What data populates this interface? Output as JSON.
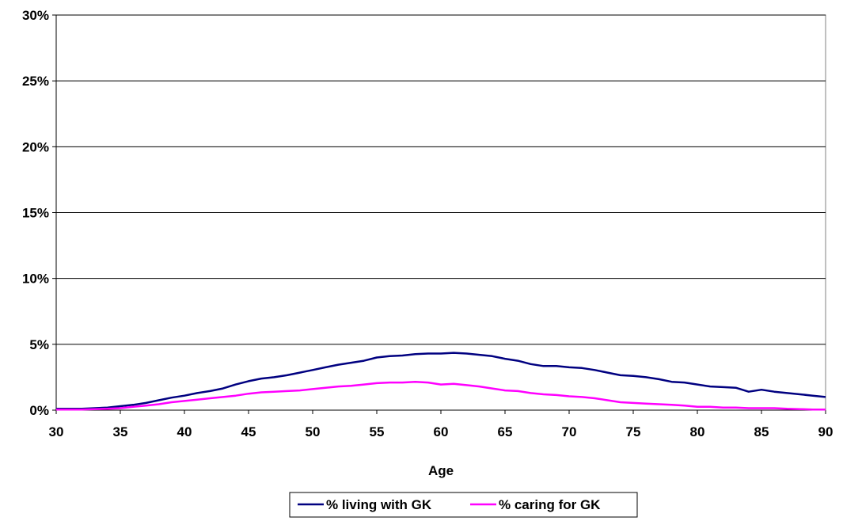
{
  "chart_data": {
    "type": "line",
    "title": "",
    "xlabel": "Age",
    "ylabel": "",
    "xlim": [
      30,
      90
    ],
    "ylim": [
      0,
      30
    ],
    "x_ticks": [
      "30",
      "35",
      "40",
      "45",
      "50",
      "55",
      "60",
      "65",
      "70",
      "75",
      "80",
      "85",
      "90"
    ],
    "y_ticks": [
      "0%",
      "5%",
      "10%",
      "15%",
      "20%",
      "25%",
      "30%"
    ],
    "grid": true,
    "legend_position": "bottom",
    "series": [
      {
        "name": "% living with GK",
        "color": "#000080",
        "x": [
          30,
          31,
          32,
          33,
          34,
          35,
          36,
          37,
          38,
          39,
          40,
          41,
          42,
          43,
          44,
          45,
          46,
          47,
          48,
          49,
          50,
          51,
          52,
          53,
          54,
          55,
          56,
          57,
          58,
          59,
          60,
          61,
          62,
          63,
          64,
          65,
          66,
          67,
          68,
          69,
          70,
          71,
          72,
          73,
          74,
          75,
          76,
          77,
          78,
          79,
          80,
          81,
          82,
          83,
          84,
          85,
          86,
          87,
          88,
          89,
          90
        ],
        "y": [
          0.1,
          0.1,
          0.1,
          0.15,
          0.2,
          0.3,
          0.4,
          0.55,
          0.75,
          0.95,
          1.1,
          1.3,
          1.45,
          1.65,
          1.95,
          2.2,
          2.4,
          2.5,
          2.65,
          2.85,
          3.05,
          3.25,
          3.45,
          3.6,
          3.75,
          4.0,
          4.1,
          4.15,
          4.25,
          4.3,
          4.3,
          4.35,
          4.3,
          4.2,
          4.1,
          3.9,
          3.75,
          3.5,
          3.35,
          3.35,
          3.25,
          3.2,
          3.05,
          2.85,
          2.65,
          2.6,
          2.5,
          2.35,
          2.15,
          2.1,
          1.95,
          1.8,
          1.75,
          1.7,
          1.4,
          1.55,
          1.4,
          1.3,
          1.2,
          1.1,
          1.0
        ]
      },
      {
        "name": "% caring for GK",
        "color": "#ff00ff",
        "x": [
          30,
          31,
          32,
          33,
          34,
          35,
          36,
          37,
          38,
          39,
          40,
          41,
          42,
          43,
          44,
          45,
          46,
          47,
          48,
          49,
          50,
          51,
          52,
          53,
          54,
          55,
          56,
          57,
          58,
          59,
          60,
          61,
          62,
          63,
          64,
          65,
          66,
          67,
          68,
          69,
          70,
          71,
          72,
          73,
          74,
          75,
          76,
          77,
          78,
          79,
          80,
          81,
          82,
          83,
          84,
          85,
          86,
          87,
          88,
          89,
          90
        ],
        "y": [
          0.05,
          0.05,
          0.05,
          0.08,
          0.1,
          0.15,
          0.25,
          0.35,
          0.45,
          0.6,
          0.7,
          0.8,
          0.9,
          1.0,
          1.1,
          1.25,
          1.35,
          1.4,
          1.45,
          1.5,
          1.6,
          1.7,
          1.8,
          1.85,
          1.95,
          2.05,
          2.1,
          2.1,
          2.15,
          2.1,
          1.95,
          2.0,
          1.9,
          1.8,
          1.65,
          1.5,
          1.45,
          1.3,
          1.2,
          1.15,
          1.05,
          1.0,
          0.9,
          0.75,
          0.6,
          0.55,
          0.5,
          0.45,
          0.4,
          0.35,
          0.25,
          0.25,
          0.2,
          0.2,
          0.15,
          0.15,
          0.15,
          0.1,
          0.08,
          0.05,
          0.05
        ]
      }
    ]
  }
}
